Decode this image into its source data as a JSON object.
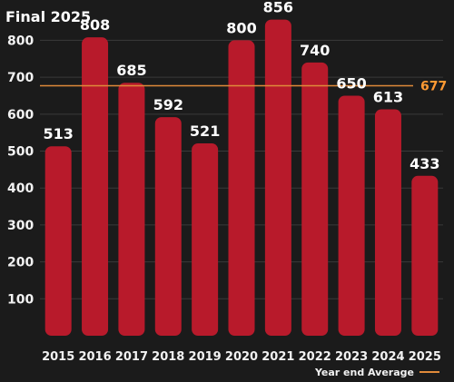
{
  "chart_data": {
    "type": "bar",
    "title": "Final 2025",
    "categories": [
      "2015",
      "2016",
      "2017",
      "2018",
      "2019",
      "2020",
      "2021",
      "2022",
      "2023",
      "2024",
      "2025"
    ],
    "values": [
      513,
      808,
      685,
      592,
      521,
      800,
      856,
      740,
      650,
      613,
      433
    ],
    "yticks": [
      100,
      200,
      300,
      400,
      500,
      600,
      700,
      800
    ],
    "ylim": [
      0,
      860
    ],
    "grid": true,
    "reference_line": {
      "value": 677,
      "label": "677"
    },
    "legend": {
      "label": "Year end Average",
      "placement": "bottom-right"
    },
    "colors": {
      "background": "#1b1b1b",
      "bar": "#b81a2b",
      "average": "#e08a3a",
      "grid": "#3a3a3a",
      "text": "#ffffff"
    }
  }
}
